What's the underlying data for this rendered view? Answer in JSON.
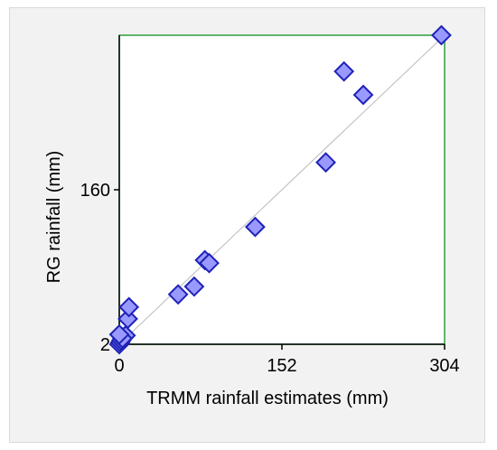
{
  "chart_data": {
    "type": "scatter",
    "xlabel": "TRMM rainfall estimates (mm)",
    "ylabel": "RG rainfall (mm)",
    "xlim": [
      0,
      304
    ],
    "ylim": [
      2,
      318
    ],
    "x_ticks": [
      0,
      152,
      304
    ],
    "y_ticks": [
      2,
      160
    ],
    "x_tick_labels": [
      "0",
      "152",
      "304"
    ],
    "y_tick_labels": [
      "2",
      "160"
    ],
    "grid": false,
    "legend": "none",
    "trendline": {
      "x": [
        0,
        304
      ],
      "y": [
        2,
        318
      ]
    },
    "points": [
      {
        "x": 0,
        "y": 2
      },
      {
        "x": 1,
        "y": 4
      },
      {
        "x": 2,
        "y": 6
      },
      {
        "x": 3,
        "y": 9
      },
      {
        "x": 6,
        "y": 11
      },
      {
        "x": 3,
        "y": 8
      },
      {
        "x": 0,
        "y": 12
      },
      {
        "x": 8,
        "y": 28
      },
      {
        "x": 9,
        "y": 40
      },
      {
        "x": 55,
        "y": 53
      },
      {
        "x": 70,
        "y": 61
      },
      {
        "x": 80,
        "y": 88
      },
      {
        "x": 84,
        "y": 85
      },
      {
        "x": 127,
        "y": 122
      },
      {
        "x": 193,
        "y": 188
      },
      {
        "x": 210,
        "y": 281
      },
      {
        "x": 228,
        "y": 257
      },
      {
        "x": 301,
        "y": 318
      }
    ],
    "colors": {
      "marker_fill": "#9999ff",
      "marker_stroke": "#1e22b8",
      "plot_border": "#2e9e3e",
      "trendline": "#bbbbbb",
      "axis": "#000000"
    }
  }
}
